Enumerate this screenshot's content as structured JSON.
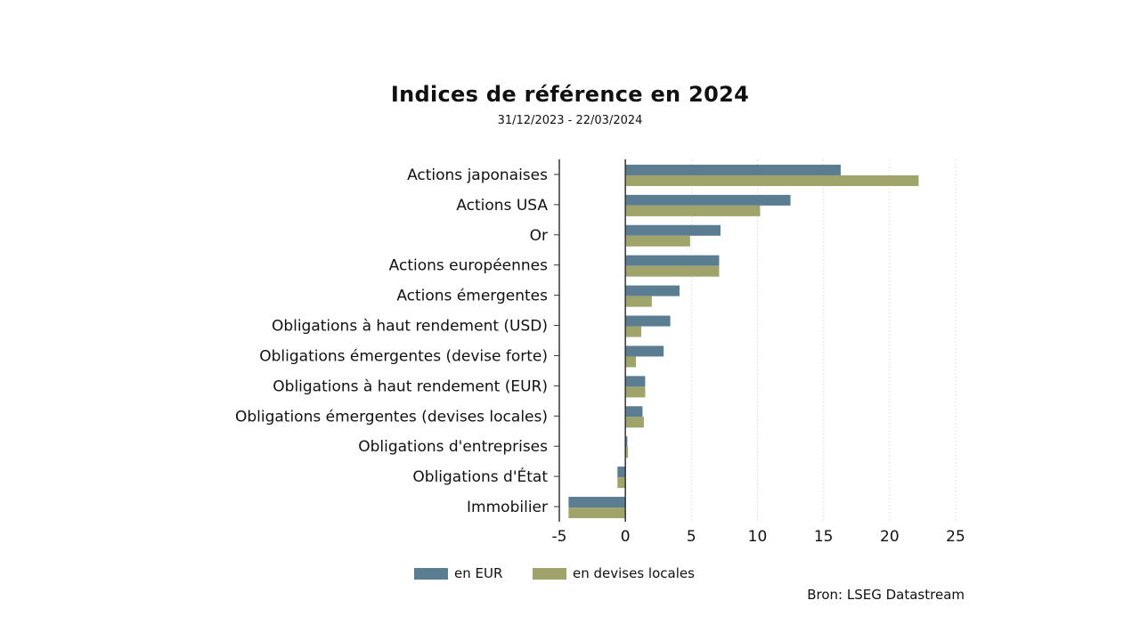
{
  "chart_data": {
    "type": "bar",
    "orientation": "horizontal",
    "title": "Indices de référence en 2024",
    "subtitle": "31/12/2023 - 22/03/2024",
    "categories": [
      "Actions japonaises",
      "Actions USA",
      "Or",
      "Actions européennes",
      "Actions émergentes",
      "Obligations à haut rendement (USD)",
      "Obligations émergentes (devise forte)",
      "Obligations à haut rendement (EUR)",
      "Obligations émergentes (devises locales)",
      "Obligations d'entreprises",
      "Obligations d'État",
      "Immobilier"
    ],
    "series": [
      {
        "name": "en EUR",
        "color": "#5b7d92",
        "values": [
          16.3,
          12.5,
          7.2,
          7.1,
          4.1,
          3.4,
          2.9,
          1.5,
          1.3,
          0.15,
          -0.6,
          -4.3
        ]
      },
      {
        "name": "en devises locales",
        "color": "#a0a46a",
        "values": [
          22.2,
          10.2,
          4.9,
          7.1,
          2.0,
          1.2,
          0.8,
          1.5,
          1.4,
          0.2,
          -0.6,
          -4.3
        ]
      }
    ],
    "xlim": [
      -5,
      25
    ],
    "xticks": [
      "-5",
      "0",
      "5",
      "10",
      "15",
      "20",
      "25"
    ],
    "grid": "vertical",
    "legend_position": "bottom"
  },
  "source": "Bron: LSEG Datastream"
}
